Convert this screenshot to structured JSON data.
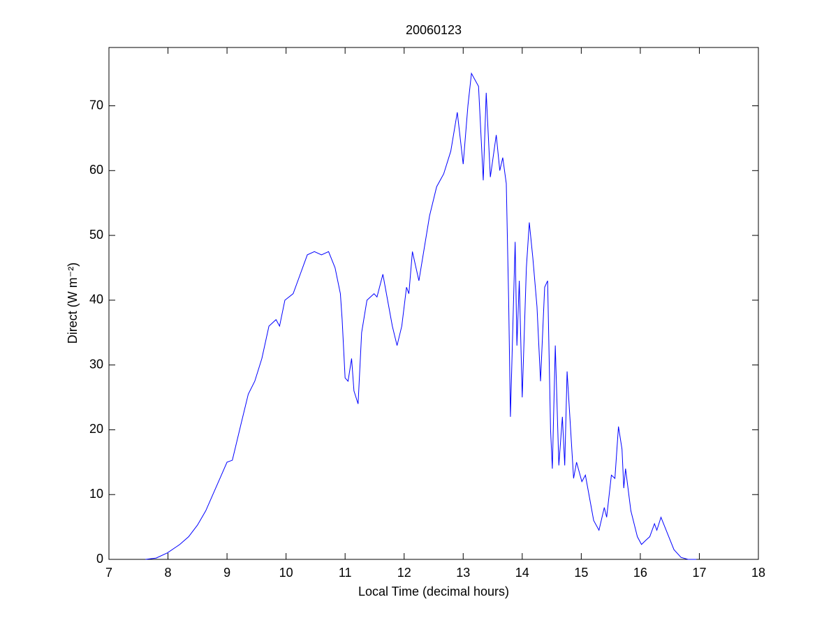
{
  "chart_data": {
    "type": "line",
    "title": "20060123",
    "x_label": "Local Time (decimal hours)",
    "y_label": "Direct (W m⁻²)",
    "x": [
      7.62,
      7.8,
      7.99,
      8.2,
      8.35,
      8.5,
      8.64,
      8.76,
      8.88,
      9.0,
      9.09,
      9.24,
      9.36,
      9.47,
      9.59,
      9.71,
      9.83,
      9.89,
      9.98,
      10.12,
      10.24,
      10.36,
      10.48,
      10.6,
      10.72,
      10.83,
      10.92,
      10.95,
      11.0,
      11.05,
      11.11,
      11.15,
      11.22,
      11.28,
      11.37,
      11.49,
      11.54,
      11.64,
      11.72,
      11.8,
      11.88,
      11.96,
      12.04,
      12.08,
      12.14,
      12.25,
      12.43,
      12.55,
      12.67,
      12.79,
      12.9,
      13.0,
      13.08,
      13.14,
      13.26,
      13.34,
      13.39,
      13.46,
      13.56,
      13.62,
      13.67,
      13.73,
      13.77,
      13.8,
      13.88,
      13.91,
      13.95,
      14.0,
      14.07,
      14.12,
      14.18,
      14.25,
      14.31,
      14.38,
      14.43,
      14.48,
      14.51,
      14.56,
      14.62,
      14.68,
      14.72,
      14.76,
      14.82,
      14.87,
      14.92,
      15.01,
      15.07,
      15.15,
      15.21,
      15.3,
      15.39,
      15.43,
      15.51,
      15.57,
      15.63,
      15.69,
      15.72,
      15.75,
      15.84,
      15.95,
      16.02,
      16.1,
      16.16,
      16.24,
      16.28,
      16.35,
      16.46,
      16.57,
      16.69,
      16.81,
      16.95
    ],
    "series": [
      {
        "name": "Direct",
        "color": "#0000ff",
        "values": [
          0,
          0.2,
          1,
          2.3,
          3.5,
          5.3,
          7.5,
          10,
          12.5,
          15,
          15.3,
          21,
          25.5,
          27.5,
          31,
          36,
          37,
          36,
          40,
          41,
          44,
          47,
          47.5,
          47,
          47.5,
          45,
          41,
          37,
          28,
          27.5,
          31,
          26,
          24,
          35,
          40,
          41,
          40.5,
          44,
          40,
          36,
          33,
          36,
          42,
          41,
          47.5,
          43,
          53,
          57.5,
          59.5,
          63,
          69,
          61,
          70,
          75,
          73,
          58.5,
          72,
          59,
          65.5,
          60,
          62,
          58,
          40,
          22,
          49,
          33,
          43,
          25,
          45,
          52,
          46.5,
          39,
          27.5,
          42,
          43,
          20,
          14,
          33,
          14.5,
          22,
          14.5,
          29,
          20,
          12.5,
          15,
          12,
          13,
          9,
          6,
          4.5,
          8,
          6.5,
          13,
          12.5,
          20.5,
          17,
          11,
          14,
          7.5,
          3.5,
          2.3,
          3,
          3.5,
          5.5,
          4.5,
          6.5,
          4,
          1.5,
          0.3,
          0,
          0
        ]
      }
    ],
    "xlim": [
      7,
      18
    ],
    "xticks": [
      7,
      8,
      9,
      10,
      11,
      12,
      13,
      14,
      15,
      16,
      17,
      18
    ],
    "ylim": [
      0,
      79
    ],
    "yticks": [
      0,
      10,
      20,
      30,
      40,
      50,
      60,
      70
    ]
  }
}
